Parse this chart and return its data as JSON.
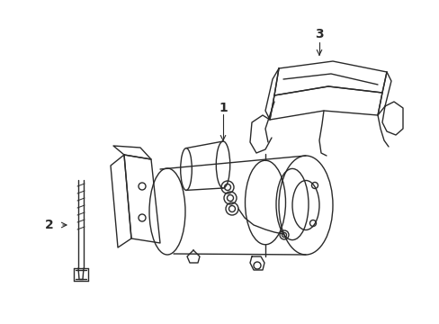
{
  "bg_color": "#ffffff",
  "line_color": "#2a2a2a",
  "line_width": 1.0,
  "fig_width": 4.89,
  "fig_height": 3.6,
  "dpi": 100,
  "label_1": "1",
  "label_2": "2",
  "label_3": "3",
  "label_fontsize": 10
}
